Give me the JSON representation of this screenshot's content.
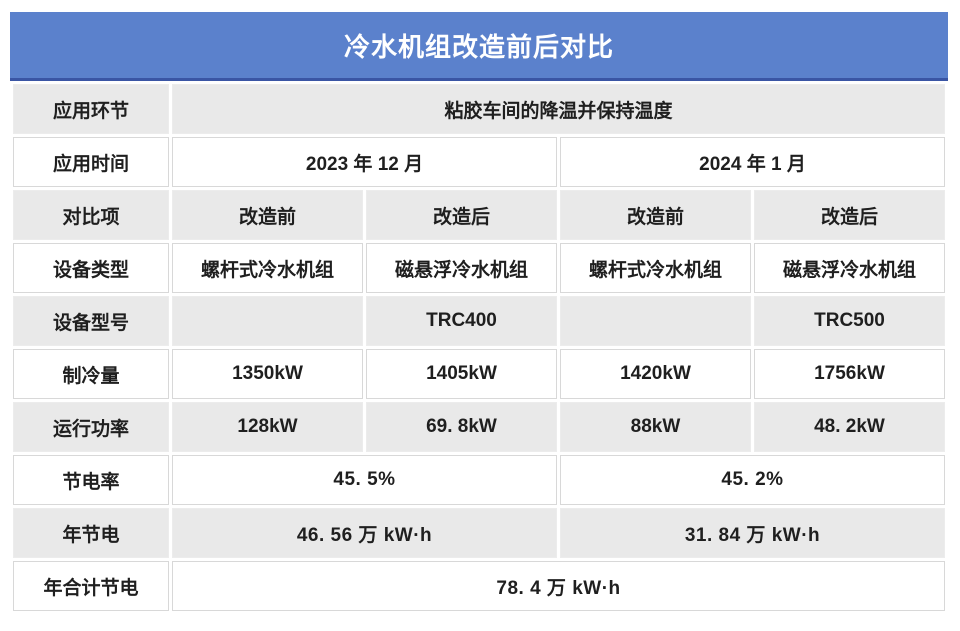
{
  "header": {
    "title": "冷水机组改造前后对比"
  },
  "colors": {
    "title_bg": "#5b81cc",
    "title_border": "#3a55a4",
    "title_text": "#ffffff",
    "row_alt_bg": "#e9e9e9",
    "row_bg": "#ffffff",
    "grid_line": "#d8d8d8",
    "text": "#1f1f1f",
    "highlight_red": "#e21212"
  },
  "chart_data": {
    "type": "table",
    "title": "冷水机组改造前后对比",
    "rows": [
      {
        "label": "应用环节",
        "cells": [
          {
            "text": "粘胶车间的降温并保持温度",
            "span": 4
          }
        ]
      },
      {
        "label": "应用时间",
        "cells": [
          {
            "text": "2023 年 12 月",
            "span": 2
          },
          {
            "text": "2024 年 1 月",
            "span": 2
          }
        ]
      },
      {
        "label": "对比项",
        "cells": [
          {
            "text": "改造前"
          },
          {
            "text": "改造后"
          },
          {
            "text": "改造前"
          },
          {
            "text": "改造后"
          }
        ]
      },
      {
        "label": "设备类型",
        "cells": [
          {
            "text": "螺杆式冷水机组"
          },
          {
            "text": "磁悬浮冷水机组"
          },
          {
            "text": "螺杆式冷水机组"
          },
          {
            "text": "磁悬浮冷水机组"
          }
        ]
      },
      {
        "label": "设备型号",
        "cells": [
          {
            "text": ""
          },
          {
            "text": "TRC400"
          },
          {
            "text": ""
          },
          {
            "text": "TRC500"
          }
        ]
      },
      {
        "label": "制冷量",
        "cells": [
          {
            "text": "1350kW"
          },
          {
            "text": "1405kW"
          },
          {
            "text": "1420kW"
          },
          {
            "text": "1756kW"
          }
        ]
      },
      {
        "label": "运行功率",
        "cells": [
          {
            "text": "128kW"
          },
          {
            "text": "69. 8kW"
          },
          {
            "text": "88kW"
          },
          {
            "text": "48. 2kW"
          }
        ]
      },
      {
        "label": "节电率",
        "cells": [
          {
            "text": "45. 5%",
            "span": 2,
            "red": true
          },
          {
            "text": "45. 2%",
            "span": 2,
            "red": true
          }
        ]
      },
      {
        "label": "年节电",
        "cells": [
          {
            "text": "46. 56 万 kW·h",
            "span": 2,
            "red": true
          },
          {
            "text": "31. 84 万 kW·h",
            "span": 2,
            "red": true
          }
        ]
      },
      {
        "label": "年合计节电",
        "cells": [
          {
            "text": "78. 4 万 kW·h",
            "span": 4,
            "red": true
          }
        ]
      }
    ]
  }
}
